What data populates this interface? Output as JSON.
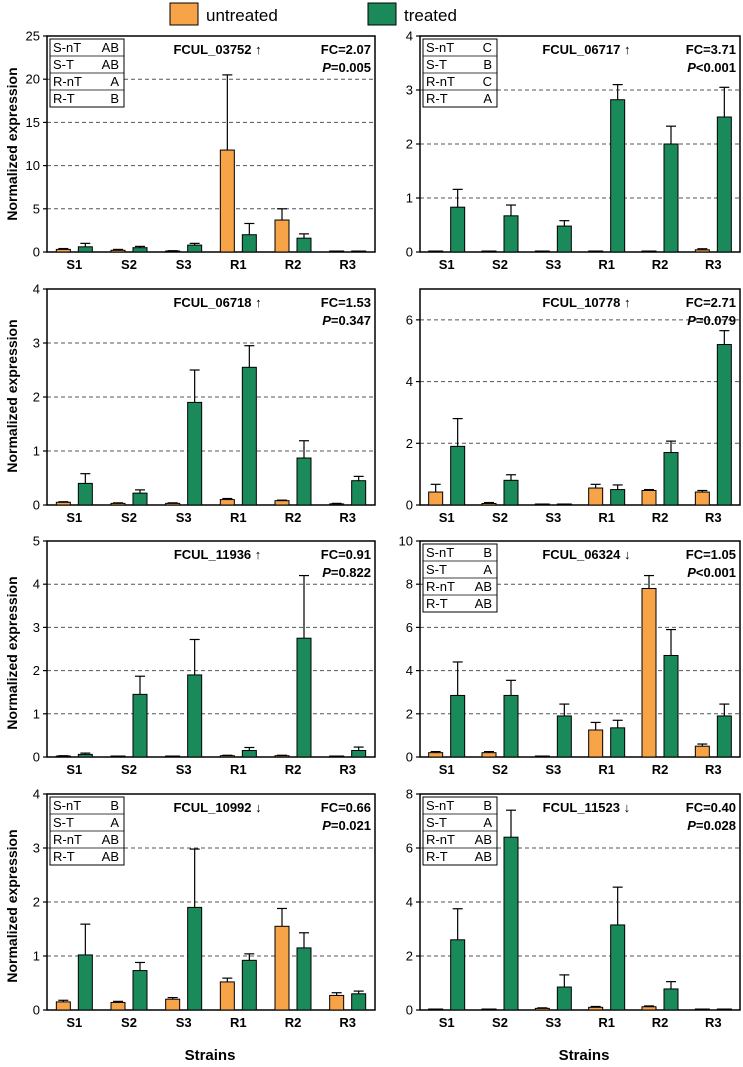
{
  "legend": {
    "items": [
      {
        "label": "untreated",
        "color": "#F7A448"
      },
      {
        "label": "treated",
        "color": "#1A8A5A"
      }
    ]
  },
  "colors": {
    "untreated": "#F7A448",
    "treated": "#1A8A5A",
    "axis": "#000000",
    "grid": "#555555"
  },
  "ylabel": "Normalized expression",
  "xlabel": "Strains",
  "chart_data": [
    {
      "type": "bar",
      "title": "FCUL_03752",
      "arrow": "↑",
      "fc": "FC=2.07",
      "p_label": "P",
      "p_value": "=0.005",
      "categories": [
        "S1",
        "S2",
        "S3",
        "R1",
        "R2",
        "R3"
      ],
      "ylim": [
        0,
        25
      ],
      "yticks": [
        0,
        5,
        10,
        15,
        20,
        25
      ],
      "series": [
        {
          "name": "untreated",
          "values": [
            0.3,
            0.2,
            0.1,
            11.8,
            3.7,
            0.05
          ],
          "errors": [
            0.1,
            0.1,
            0.05,
            8.7,
            1.3,
            0.05
          ]
        },
        {
          "name": "treated",
          "values": [
            0.6,
            0.5,
            0.8,
            2.0,
            1.6,
            0.05
          ],
          "errors": [
            0.4,
            0.15,
            0.2,
            1.3,
            0.5,
            0.05
          ]
        }
      ],
      "letters": [
        [
          "S-nT",
          "AB"
        ],
        [
          "S-T",
          "AB"
        ],
        [
          "R-nT",
          "A"
        ],
        [
          "R-T",
          "B"
        ]
      ]
    },
    {
      "type": "bar",
      "title": "FCUL_06717",
      "arrow": "↑",
      "fc": "FC=3.71",
      "p_label": "P",
      "p_value": "<0.001",
      "categories": [
        "S1",
        "S2",
        "S3",
        "R1",
        "R2",
        "R3"
      ],
      "ylim": [
        0,
        4
      ],
      "yticks": [
        0,
        1,
        2,
        3,
        4
      ],
      "series": [
        {
          "name": "untreated",
          "values": [
            0.01,
            0.01,
            0.01,
            0.01,
            0.01,
            0.04
          ],
          "errors": [
            0.005,
            0.005,
            0.005,
            0.005,
            0.005,
            0.02
          ]
        },
        {
          "name": "treated",
          "values": [
            0.83,
            0.67,
            0.48,
            2.82,
            2.0,
            2.5
          ],
          "errors": [
            0.33,
            0.2,
            0.1,
            0.28,
            0.33,
            0.55
          ]
        }
      ],
      "letters": [
        [
          "S-nT",
          "C"
        ],
        [
          "S-T",
          "B"
        ],
        [
          "R-nT",
          "C"
        ],
        [
          "R-T",
          "A"
        ]
      ]
    },
    {
      "type": "bar",
      "title": "FCUL_06718",
      "arrow": "↑",
      "fc": "FC=1.53",
      "p_label": "P",
      "p_value": "=0.347",
      "categories": [
        "S1",
        "S2",
        "S3",
        "R1",
        "R2",
        "R3"
      ],
      "ylim": [
        0,
        4
      ],
      "yticks": [
        0,
        1,
        2,
        3,
        4
      ],
      "series": [
        {
          "name": "untreated",
          "values": [
            0.05,
            0.03,
            0.03,
            0.1,
            0.08,
            0.02
          ],
          "errors": [
            0.01,
            0.01,
            0.01,
            0.02,
            0.01,
            0.01
          ]
        },
        {
          "name": "treated",
          "values": [
            0.4,
            0.22,
            1.9,
            2.55,
            0.87,
            0.45
          ],
          "errors": [
            0.18,
            0.06,
            0.6,
            0.4,
            0.32,
            0.08
          ]
        }
      ],
      "letters": []
    },
    {
      "type": "bar",
      "title": "FCUL_10778",
      "arrow": "↑",
      "fc": "FC=2.71",
      "p_label": "P",
      "p_value": "=0.079",
      "categories": [
        "S1",
        "S2",
        "S3",
        "R1",
        "R2",
        "R3"
      ],
      "ylim": [
        0,
        7
      ],
      "yticks": [
        0,
        2,
        4,
        6
      ],
      "series": [
        {
          "name": "untreated",
          "values": [
            0.42,
            0.05,
            0.02,
            0.55,
            0.47,
            0.42
          ],
          "errors": [
            0.25,
            0.03,
            0.01,
            0.12,
            0.03,
            0.05
          ]
        },
        {
          "name": "treated",
          "values": [
            1.9,
            0.8,
            0.02,
            0.5,
            1.7,
            5.2
          ],
          "errors": [
            0.9,
            0.18,
            0.01,
            0.15,
            0.37,
            0.45
          ]
        }
      ],
      "letters": []
    },
    {
      "type": "bar",
      "title": "FCUL_11936",
      "arrow": "↑",
      "fc": "FC=0.91",
      "p_label": "P",
      "p_value": "=0.822",
      "categories": [
        "S1",
        "S2",
        "S3",
        "R1",
        "R2",
        "R3"
      ],
      "ylim": [
        0,
        5
      ],
      "yticks": [
        0,
        1,
        2,
        3,
        4,
        5
      ],
      "series": [
        {
          "name": "untreated",
          "values": [
            0.02,
            0.01,
            0.01,
            0.03,
            0.03,
            0.01
          ],
          "errors": [
            0.01,
            0.005,
            0.005,
            0.01,
            0.01,
            0.005
          ]
        },
        {
          "name": "treated",
          "values": [
            0.06,
            1.45,
            1.9,
            0.15,
            2.75,
            0.15
          ],
          "errors": [
            0.03,
            0.42,
            0.82,
            0.07,
            1.45,
            0.08
          ]
        }
      ],
      "letters": []
    },
    {
      "type": "bar",
      "title": "FCUL_06324",
      "arrow": "↓",
      "fc": "FC=1.05",
      "p_label": "P",
      "p_value": "<0.001",
      "categories": [
        "S1",
        "S2",
        "S3",
        "R1",
        "R2",
        "R3"
      ],
      "ylim": [
        0,
        10
      ],
      "yticks": [
        0,
        2,
        4,
        6,
        8,
        10
      ],
      "series": [
        {
          "name": "untreated",
          "values": [
            0.2,
            0.2,
            0.03,
            1.25,
            7.8,
            0.5
          ],
          "errors": [
            0.05,
            0.05,
            0.01,
            0.35,
            0.6,
            0.1
          ]
        },
        {
          "name": "treated",
          "values": [
            2.85,
            2.85,
            1.9,
            1.35,
            4.7,
            1.9
          ],
          "errors": [
            1.55,
            0.7,
            0.55,
            0.35,
            1.2,
            0.55
          ]
        }
      ],
      "letters": [
        [
          "S-nT",
          "B"
        ],
        [
          "S-T",
          "A"
        ],
        [
          "R-nT",
          "AB"
        ],
        [
          "R-T",
          "AB"
        ]
      ]
    },
    {
      "type": "bar",
      "title": "FCUL_10992",
      "arrow": "↓",
      "fc": "FC=0.66",
      "p_label": "P",
      "p_value": "=0.021",
      "categories": [
        "S1",
        "S2",
        "S3",
        "R1",
        "R2",
        "R3"
      ],
      "ylim": [
        0,
        4
      ],
      "yticks": [
        0,
        1,
        2,
        3,
        4
      ],
      "series": [
        {
          "name": "untreated",
          "values": [
            0.15,
            0.14,
            0.2,
            0.52,
            1.55,
            0.27
          ],
          "errors": [
            0.03,
            0.02,
            0.03,
            0.07,
            0.33,
            0.05
          ]
        },
        {
          "name": "treated",
          "values": [
            1.02,
            0.73,
            1.9,
            0.92,
            1.15,
            0.3
          ],
          "errors": [
            0.57,
            0.15,
            1.08,
            0.12,
            0.28,
            0.05
          ]
        }
      ],
      "letters": [
        [
          "S-nT",
          "B"
        ],
        [
          "S-T",
          "A"
        ],
        [
          "R-nT",
          "AB"
        ],
        [
          "R-T",
          "AB"
        ]
      ]
    },
    {
      "type": "bar",
      "title": "FCUL_11523",
      "arrow": "↓",
      "fc": "FC=0.40",
      "p_label": "P",
      "p_value": "=0.028",
      "categories": [
        "S1",
        "S2",
        "S3",
        "R1",
        "R2",
        "R3"
      ],
      "ylim": [
        0,
        8
      ],
      "yticks": [
        0,
        2,
        4,
        6,
        8
      ],
      "series": [
        {
          "name": "untreated",
          "values": [
            0.01,
            0.01,
            0.06,
            0.1,
            0.12,
            0.01
          ],
          "errors": [
            0.005,
            0.005,
            0.02,
            0.03,
            0.03,
            0.005
          ]
        },
        {
          "name": "treated",
          "values": [
            2.6,
            6.4,
            0.85,
            3.15,
            0.78,
            0.01
          ],
          "errors": [
            1.15,
            1.0,
            0.45,
            1.4,
            0.27,
            0.005
          ]
        }
      ],
      "letters": [
        [
          "S-nT",
          "B"
        ],
        [
          "S-T",
          "A"
        ],
        [
          "R-nT",
          "AB"
        ],
        [
          "R-T",
          "AB"
        ]
      ]
    }
  ]
}
